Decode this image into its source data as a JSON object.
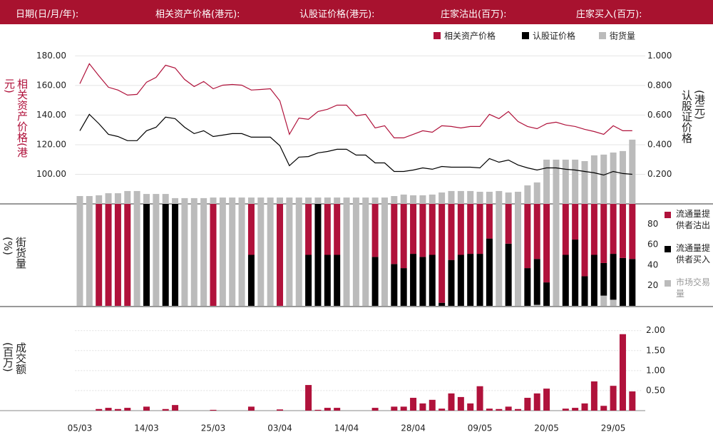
{
  "header": {
    "fields": [
      "日期(日/月/年):",
      "相关资产价格(港元):",
      "认股证价格(港元):",
      "庄家沽出(百万):",
      "庄家买入(百万):"
    ]
  },
  "chart_data": [
    {
      "type": "combo",
      "y_label": "相关资产价格(港元)",
      "y2_label": "认股证价格(港元)",
      "legend": "top-right",
      "grid": true,
      "ylim": [
        80,
        185
      ],
      "yticks": [
        {
          "value": 100,
          "label": "100.00"
        },
        {
          "value": 120,
          "label": "120.00"
        },
        {
          "value": 140,
          "label": "140.00"
        },
        {
          "value": 160,
          "label": "160.00"
        },
        {
          "value": 180,
          "label": "180.00"
        }
      ],
      "y2lim": [
        0,
        1.05
      ],
      "y2ticks": [
        {
          "value": 0.2,
          "label": "0.200"
        },
        {
          "value": 0.4,
          "label": "0.400"
        },
        {
          "value": 0.6,
          "label": "0.600"
        },
        {
          "value": 0.8,
          "label": "0.800"
        },
        {
          "value": 1,
          "label": "1.000"
        }
      ],
      "series": [
        {
          "name": "相关资产价格",
          "color": "#b0123b",
          "kind": "line",
          "values": [
            161.2,
            174.7,
            166.5,
            158.8,
            156.9,
            153.5,
            154,
            162.2,
            165.5,
            173.7,
            171.8,
            164.1,
            159.3,
            162.7,
            157.8,
            160.2,
            160.7,
            160.2,
            156.9,
            157.3,
            157.8,
            149.6,
            127,
            138,
            137.1,
            142.4,
            143.9,
            146.7,
            146.7,
            139.5,
            140.5,
            131.3,
            132.8,
            124.6,
            124.6,
            127,
            129.4,
            128.4,
            132.8,
            132.3,
            131.3,
            132.3,
            132.3,
            140.5,
            137.6,
            142.4,
            135.7,
            132.3,
            130.8,
            134.2,
            135.2,
            133.3,
            132.3,
            130.4,
            128.9,
            127,
            132.8,
            129.4,
            129.4
          ]
        },
        {
          "name": "认股证价格",
          "color": "#000000",
          "kind": "line",
          "axis": "y2",
          "values": [
            0.494,
            0.605,
            0.542,
            0.47,
            0.455,
            0.427,
            0.427,
            0.494,
            0.518,
            0.586,
            0.576,
            0.518,
            0.475,
            0.494,
            0.455,
            0.465,
            0.475,
            0.475,
            0.451,
            0.451,
            0.451,
            0.393,
            0.258,
            0.316,
            0.32,
            0.345,
            0.354,
            0.369,
            0.369,
            0.33,
            0.33,
            0.277,
            0.277,
            0.219,
            0.219,
            0.229,
            0.243,
            0.234,
            0.253,
            0.248,
            0.248,
            0.248,
            0.243,
            0.306,
            0.282,
            0.296,
            0.263,
            0.243,
            0.229,
            0.243,
            0.243,
            0.234,
            0.229,
            0.219,
            0.21,
            0.195,
            0.219,
            0.205,
            0.2
          ]
        },
        {
          "name": "街货量",
          "color": "#bbbbbb",
          "kind": "bar",
          "axis": "y2",
          "values": [
            0.053,
            0.053,
            0.058,
            0.072,
            0.072,
            0.087,
            0.087,
            0.067,
            0.067,
            0.067,
            0.039,
            0.039,
            0.039,
            0.039,
            0.043,
            0.043,
            0.043,
            0.043,
            0.043,
            0.043,
            0.043,
            0.043,
            0.043,
            0.043,
            0.043,
            0.043,
            0.043,
            0.043,
            0.043,
            0.043,
            0.043,
            0.043,
            0.043,
            0.053,
            0.063,
            0.058,
            0.058,
            0.063,
            0.077,
            0.087,
            0.087,
            0.087,
            0.082,
            0.082,
            0.087,
            0.077,
            0.082,
            0.125,
            0.145,
            0.299,
            0.299,
            0.299,
            0.299,
            0.289,
            0.328,
            0.333,
            0.347,
            0.357,
            0.434
          ]
        }
      ]
    },
    {
      "type": "stacked_bar",
      "y_label": "街货量(%)",
      "legend": "right",
      "ylim": [
        0,
        100
      ],
      "yticks": [
        20,
        40,
        60,
        80
      ],
      "series": [
        {
          "name": "流通量提供者沽出",
          "color": "#b0123b",
          "values": [
            0,
            0,
            100,
            100,
            100,
            100,
            0,
            0,
            0,
            0,
            0,
            0,
            0,
            0,
            100,
            0,
            0,
            0,
            50,
            0,
            0,
            100,
            0,
            0,
            50,
            0,
            50,
            50,
            0,
            0,
            0,
            52,
            0,
            59,
            63,
            49,
            52,
            50,
            97,
            55,
            50,
            49,
            49,
            34,
            0,
            39,
            0,
            63,
            54,
            77,
            0,
            50,
            35,
            71,
            50,
            58,
            49,
            53,
            54
          ]
        },
        {
          "name": "流通量提供者买入",
          "color": "#000000",
          "values": [
            0,
            0,
            0,
            0,
            0,
            0,
            0,
            100,
            0,
            100,
            100,
            0,
            0,
            0,
            0,
            0,
            0,
            0,
            50,
            0,
            0,
            0,
            0,
            0,
            50,
            100,
            50,
            50,
            0,
            0,
            0,
            48,
            0,
            41,
            37,
            51,
            48,
            50,
            3,
            45,
            50,
            51,
            51,
            66,
            0,
            61,
            0,
            37,
            45,
            23,
            0,
            50,
            65,
            29,
            50,
            32,
            45,
            47,
            46
          ]
        },
        {
          "name": "市场交易量",
          "color": "#bbbbbb",
          "values": [
            100,
            100,
            0,
            0,
            0,
            0,
            100,
            0,
            100,
            0,
            0,
            100,
            100,
            100,
            0,
            100,
            100,
            100,
            0,
            100,
            100,
            0,
            100,
            100,
            0,
            0,
            0,
            0,
            100,
            100,
            100,
            0,
            100,
            0,
            0,
            0,
            0,
            0,
            0,
            0,
            0,
            0,
            0,
            0,
            100,
            0,
            100,
            0,
            1,
            0,
            100,
            0,
            0,
            0,
            0,
            10,
            6,
            0,
            0
          ]
        }
      ]
    },
    {
      "type": "bar",
      "y_label": "成交额(百万)",
      "color": "#b0123b",
      "grid": true,
      "ylim": [
        0,
        2.6
      ],
      "yticks": [
        {
          "value": 0.5,
          "label": "0.50"
        },
        {
          "value": 1,
          "label": "1.00"
        },
        {
          "value": 1.5,
          "label": "1.50"
        },
        {
          "value": 2,
          "label": "2.00"
        }
      ],
      "categories": [
        "05/03",
        null,
        null,
        null,
        null,
        null,
        null,
        "14/03",
        null,
        null,
        null,
        null,
        null,
        null,
        "25/03",
        null,
        null,
        null,
        null,
        null,
        null,
        "03/04",
        null,
        null,
        null,
        null,
        null,
        null,
        "14/04",
        null,
        null,
        null,
        null,
        null,
        null,
        "28/04",
        null,
        null,
        null,
        null,
        null,
        null,
        "09/05",
        null,
        null,
        null,
        null,
        null,
        null,
        "20/05",
        null,
        null,
        null,
        null,
        null,
        null,
        "29/05",
        null,
        null
      ],
      "values": [
        0,
        0,
        0.04,
        0.07,
        0.04,
        0.07,
        0,
        0.1,
        0,
        0.04,
        0.14,
        0,
        0,
        0,
        0.02,
        0,
        0,
        0,
        0.1,
        0,
        0,
        0.03,
        0,
        0,
        0.64,
        0.02,
        0.07,
        0.07,
        0,
        0,
        0,
        0.07,
        0,
        0.1,
        0.1,
        0.32,
        0.18,
        0.27,
        0.05,
        0.43,
        0.34,
        0.18,
        0.61,
        0.05,
        0.04,
        0.1,
        0.04,
        0.32,
        0.43,
        0.55,
        0,
        0.05,
        0.07,
        0.18,
        0.73,
        0.12,
        0.62,
        1.91,
        0.48
      ]
    }
  ]
}
